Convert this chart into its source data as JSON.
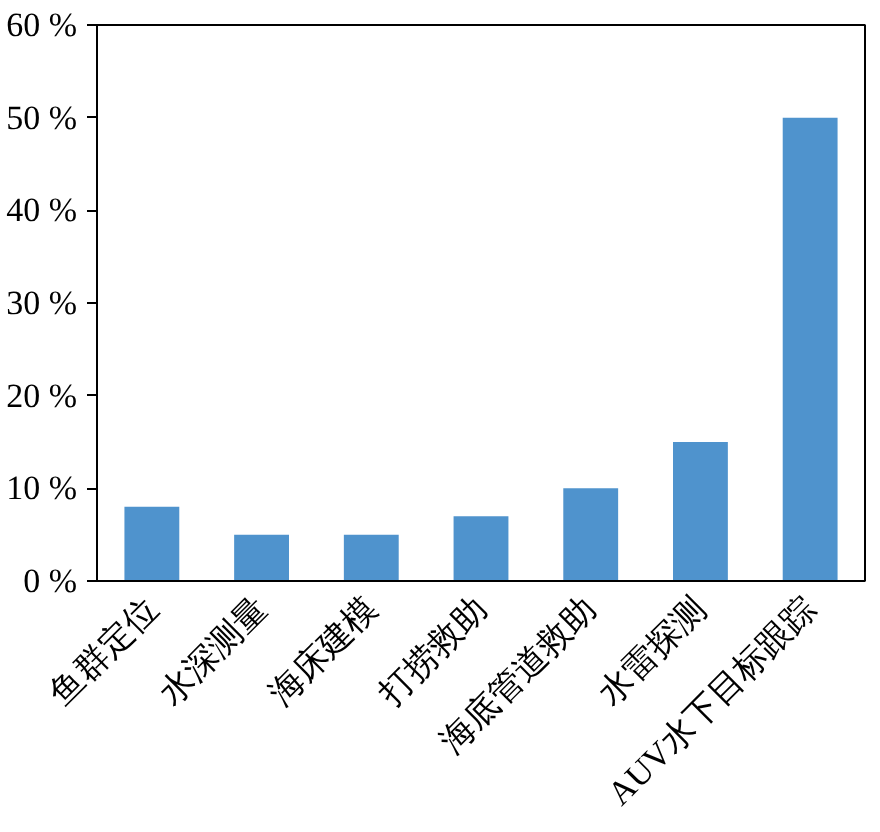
{
  "chart_data": {
    "type": "bar",
    "categories": [
      "鱼群定位",
      "水深测量",
      "海床建模",
      "打捞救助",
      "海底管道救助",
      "水雷探测",
      "AUV水下目标跟踪"
    ],
    "values": [
      8,
      5,
      5,
      7,
      10,
      15,
      50
    ],
    "color": "#4f93cd",
    "ylim": [
      0,
      60
    ],
    "yticks": [
      {
        "value": 0,
        "label": "0 %"
      },
      {
        "value": 10,
        "label": "10 %"
      },
      {
        "value": 20,
        "label": "20 %"
      },
      {
        "value": 30,
        "label": "30 %"
      },
      {
        "value": 40,
        "label": "40 %"
      },
      {
        "value": 50,
        "label": "50 %"
      },
      {
        "value": 60,
        "label": "60 %"
      }
    ],
    "grid": false
  }
}
